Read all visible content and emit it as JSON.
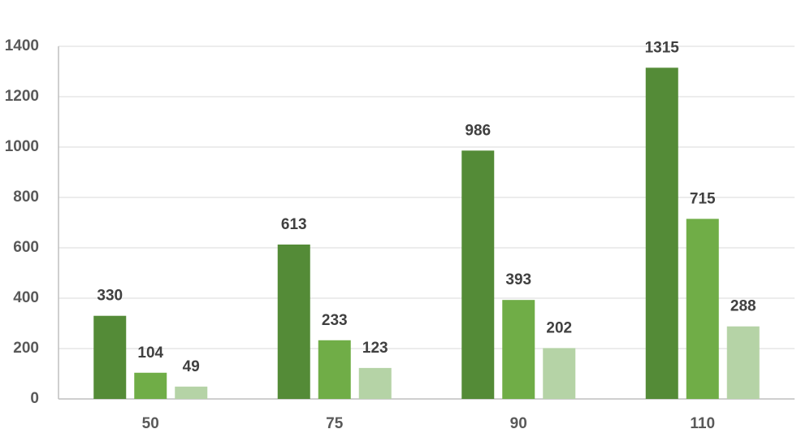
{
  "chart_data": {
    "type": "bar",
    "categories": [
      "50",
      "75",
      "90",
      "110"
    ],
    "series": [
      {
        "color": "#548b37",
        "values": [
          330,
          613,
          986,
          1315
        ]
      },
      {
        "color": "#70ad47",
        "values": [
          104,
          233,
          393,
          715
        ]
      },
      {
        "color": "#b5d3a6",
        "values": [
          49,
          123,
          202,
          288
        ]
      }
    ],
    "ylim": [
      0,
      1400
    ],
    "yticks": [
      0,
      200,
      400,
      600,
      800,
      1000,
      1200,
      1400
    ],
    "grid": true
  }
}
